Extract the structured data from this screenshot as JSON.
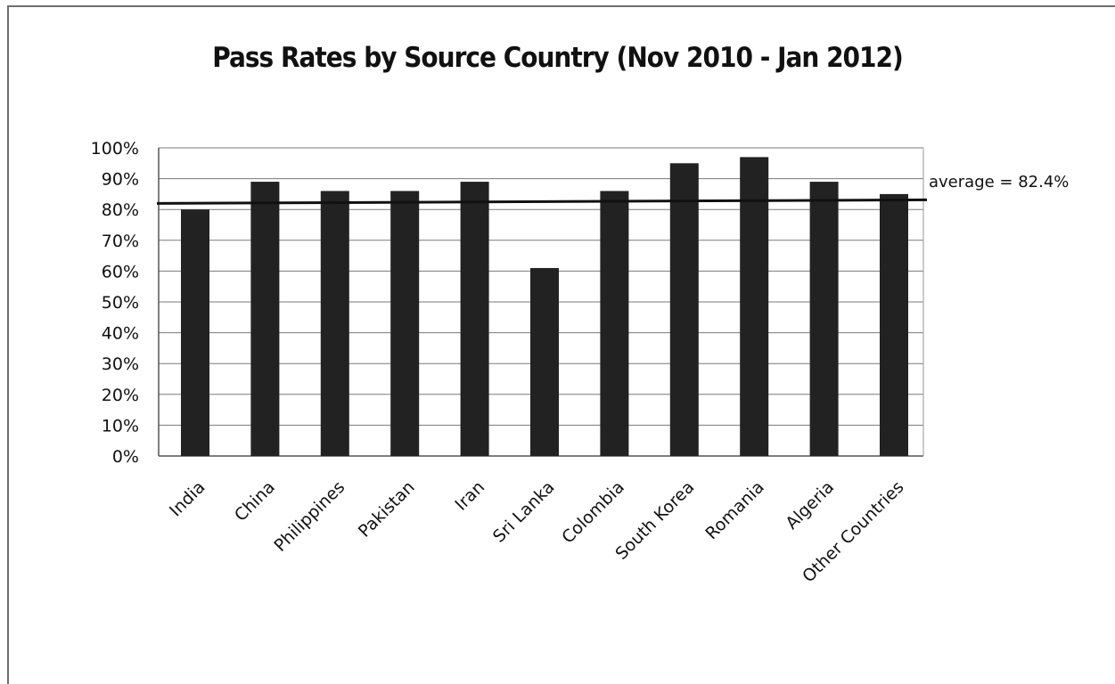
{
  "chart_data": {
    "type": "bar",
    "title": "Pass Rates by Source Country (Nov 2010 - Jan 2012)",
    "xlabel": "",
    "ylabel": "",
    "categories": [
      "India",
      "China",
      "Philippines",
      "Pakistan",
      "Iran",
      "Sri Lanka",
      "Colombia",
      "South Korea",
      "Romania",
      "Algeria",
      "Other Countries"
    ],
    "values": [
      80,
      89,
      86,
      86,
      89,
      61,
      86,
      95,
      97,
      89,
      85
    ],
    "ylim": [
      0,
      100
    ],
    "yticks": [
      "0%",
      "10%",
      "20%",
      "30%",
      "40%",
      "50%",
      "60%",
      "70%",
      "80%",
      "90%",
      "100%"
    ],
    "grid": true,
    "legend": "none",
    "bar_color": "#222222",
    "reference_line": {
      "value": 82.4,
      "label": "average = 82.4%"
    }
  }
}
